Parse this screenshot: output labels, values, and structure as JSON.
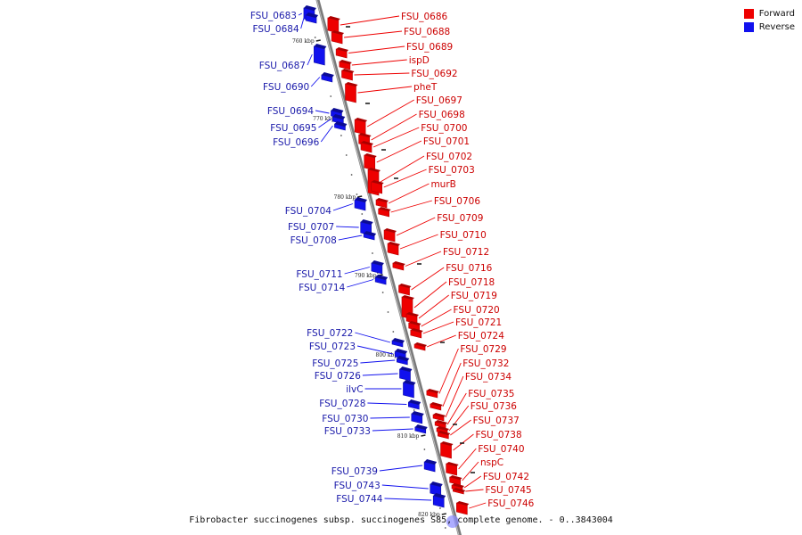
{
  "colors": {
    "forward": "#ee0000",
    "reverse": "#1111ee",
    "backbone": "#888888"
  },
  "legend": [
    {
      "label": "Forward",
      "color": "#ee0000"
    },
    {
      "label": "Reverse",
      "color": "#1111ee"
    }
  ],
  "caption": "Fibrobacter succinogenes subsp. succinogenes S85, complete genome. - 0..3843004",
  "ticks": [
    "760 kbp",
    "770 kbp",
    "780 kbp",
    "790 kbp",
    "800 kbp",
    "810 kbp",
    "820 kbp"
  ],
  "forward_genes": [
    "FSU_0686",
    "FSU_0688",
    "FSU_0689",
    "ispD",
    "FSU_0692",
    "pheT",
    "FSU_0697",
    "FSU_0698",
    "FSU_0700",
    "FSU_0701",
    "FSU_0702",
    "FSU_0703",
    "murB",
    "FSU_0706",
    "FSU_0709",
    "FSU_0710",
    "FSU_0712",
    "FSU_0716",
    "FSU_0718",
    "FSU_0719",
    "FSU_0720",
    "FSU_0721",
    "FSU_0724",
    "FSU_0729",
    "FSU_0732",
    "FSU_0734",
    "FSU_0735",
    "FSU_0736",
    "FSU_0737",
    "FSU_0738",
    "FSU_0740",
    "nspC",
    "FSU_0742",
    "FSU_0745",
    "FSU_0746"
  ],
  "reverse_genes": [
    "FSU_0683",
    "FSU_0684",
    "FSU_0687",
    "FSU_0690",
    "FSU_0694",
    "FSU_0695",
    "FSU_0696",
    "FSU_0704",
    "FSU_0707",
    "FSU_0708",
    "FSU_0711",
    "FSU_0714",
    "FSU_0722",
    "FSU_0723",
    "FSU_0725",
    "FSU_0726",
    "ilvC",
    "FSU_0728",
    "FSU_0730",
    "FSU_0733",
    "FSU_0739",
    "FSU_0743",
    "FSU_0744"
  ]
}
